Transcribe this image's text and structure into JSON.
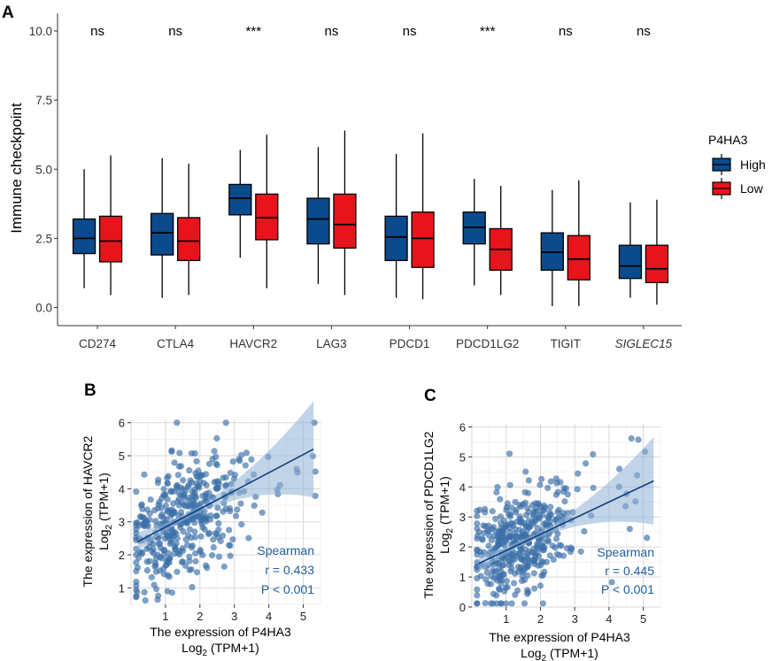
{
  "panels": {
    "a": "A",
    "b": "B",
    "c": "C"
  },
  "chart_data": [
    {
      "type": "boxplot",
      "title": "",
      "ylabel": "Immune checkpoint",
      "ylim": [
        -0.5,
        11
      ],
      "yticks": [
        "0.0",
        "2.5",
        "5.0",
        "7.5",
        "10.0"
      ],
      "categories": [
        "CD274",
        "CTLA4",
        "HAVCR2",
        "LAG3",
        "PDCD1",
        "PDCD1LG2",
        "TIGIT",
        "SIGLEC15"
      ],
      "significance": [
        "ns",
        "ns",
        "***",
        "ns",
        "ns",
        "***",
        "ns",
        "ns"
      ],
      "legend_title": "P4HA3",
      "legend_position": "right",
      "series": [
        {
          "name": "High",
          "color": "#0b4a8c",
          "boxes": [
            {
              "min": 0.7,
              "q1": 1.95,
              "median": 2.5,
              "q3": 3.2,
              "max": 5.0
            },
            {
              "min": 0.35,
              "q1": 1.9,
              "median": 2.7,
              "q3": 3.4,
              "max": 5.4
            },
            {
              "min": 1.8,
              "q1": 3.35,
              "median": 3.95,
              "q3": 4.45,
              "max": 5.7
            },
            {
              "min": 0.85,
              "q1": 2.3,
              "median": 3.2,
              "q3": 3.95,
              "max": 5.8
            },
            {
              "min": 0.35,
              "q1": 1.7,
              "median": 2.55,
              "q3": 3.3,
              "max": 5.55
            },
            {
              "min": 0.8,
              "q1": 2.3,
              "median": 2.9,
              "q3": 3.45,
              "max": 4.65
            },
            {
              "min": 0.05,
              "q1": 1.35,
              "median": 2.0,
              "q3": 2.7,
              "max": 4.25
            },
            {
              "min": 0.35,
              "q1": 1.05,
              "median": 1.5,
              "q3": 2.25,
              "max": 3.8
            }
          ]
        },
        {
          "name": "Low",
          "color": "#e8141c",
          "boxes": [
            {
              "min": 0.45,
              "q1": 1.65,
              "median": 2.4,
              "q3": 3.3,
              "max": 5.5
            },
            {
              "min": 0.45,
              "q1": 1.7,
              "median": 2.4,
              "q3": 3.25,
              "max": 5.2
            },
            {
              "min": 0.7,
              "q1": 2.45,
              "median": 3.25,
              "q3": 4.1,
              "max": 6.25
            },
            {
              "min": 0.45,
              "q1": 2.15,
              "median": 3.0,
              "q3": 4.1,
              "max": 6.4
            },
            {
              "min": 0.3,
              "q1": 1.45,
              "median": 2.5,
              "q3": 3.45,
              "max": 6.3
            },
            {
              "min": 0.45,
              "q1": 1.35,
              "median": 2.1,
              "q3": 2.85,
              "max": 4.4
            },
            {
              "min": 0.05,
              "q1": 1.0,
              "median": 1.75,
              "q3": 2.6,
              "max": 4.6
            },
            {
              "min": 0.1,
              "q1": 0.9,
              "median": 1.4,
              "q3": 2.25,
              "max": 3.9
            }
          ]
        }
      ]
    },
    {
      "type": "scatter",
      "gene": "HAVCR2",
      "xlabel_line1": "The expression of P4HA3",
      "xlabel_line2": "Log",
      "xlabel_sub": "2",
      "xlabel_unit": " (TPM+1)",
      "ylabel_line1": "The expression of  HAVCR2",
      "ylabel_line2": "Log",
      "ylabel_sub": "2",
      "ylabel_unit": " (TPM+1)",
      "xlim": [
        0,
        5.5
      ],
      "ylim": [
        0.5,
        6.1
      ],
      "xticks": [
        1,
        2,
        3,
        4,
        5
      ],
      "yticks": [
        1,
        2,
        3,
        4,
        5,
        6
      ],
      "fit": {
        "x0": 0.2,
        "y0": 2.4,
        "x1": 5.3,
        "y1": 5.2
      },
      "n_points": 420,
      "seed": 7,
      "stats": {
        "method": "Spearman",
        "r": "r = 0.433",
        "p": "P < 0.001"
      },
      "point_color": "#3a6ea8"
    },
    {
      "type": "scatter",
      "gene": "PDCD1LG2",
      "xlabel_line1": "The expression of P4HA3",
      "xlabel_line2": "Log",
      "xlabel_sub": "2",
      "xlabel_unit": " (TPM+1)",
      "ylabel_line1": "The expression of  PDCD1LG2",
      "ylabel_line2": "Log",
      "ylabel_sub": "2",
      "ylabel_unit": " (TPM+1)",
      "xlim": [
        0,
        5.5
      ],
      "ylim": [
        0,
        6.1
      ],
      "xticks": [
        1,
        2,
        3,
        4,
        5
      ],
      "yticks": [
        0,
        1,
        2,
        3,
        4,
        5,
        6
      ],
      "fit": {
        "x0": 0.2,
        "y0": 1.45,
        "x1": 5.3,
        "y1": 4.2
      },
      "n_points": 420,
      "seed": 13,
      "stats": {
        "method": "Spearman",
        "r": "r = 0.445",
        "p": "P < 0.001"
      },
      "point_color": "#3a6ea8"
    }
  ]
}
